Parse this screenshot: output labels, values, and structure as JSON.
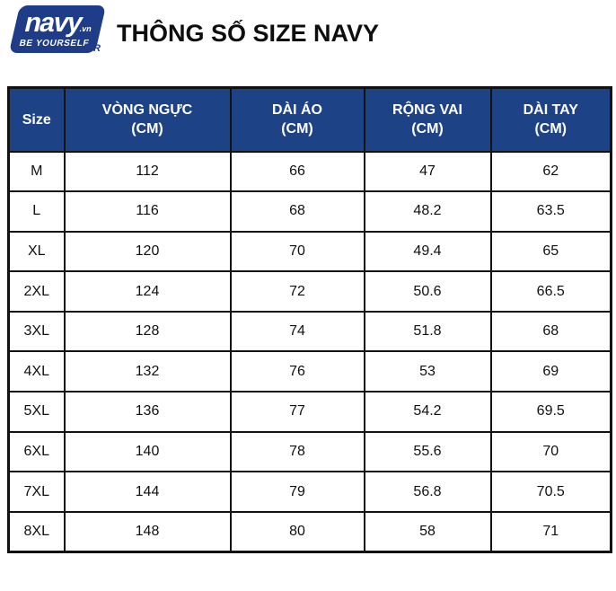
{
  "logo": {
    "brand": "navy",
    "tld": ".vn",
    "tagline": "BE YOURSELF",
    "registered": "R",
    "color": "#1e3c87"
  },
  "page_title": "THÔNG SỐ SIZE NAVY",
  "table": {
    "header_bg": "#1e4286",
    "header_text_color": "#ffffff",
    "border_color": "#121212",
    "headers": [
      {
        "label": "Size",
        "unit": ""
      },
      {
        "label": "VÒNG NGỰC",
        "unit": "(CM)"
      },
      {
        "label": "DÀI ÁO",
        "unit": "(CM)"
      },
      {
        "label": "RỘNG VAI",
        "unit": "(CM)"
      },
      {
        "label": "DÀI TAY",
        "unit": "(CM)"
      }
    ],
    "rows": [
      [
        "M",
        "112",
        "66",
        "47",
        "62"
      ],
      [
        "L",
        "116",
        "68",
        "48.2",
        "63.5"
      ],
      [
        "XL",
        "120",
        "70",
        "49.4",
        "65"
      ],
      [
        "2XL",
        "124",
        "72",
        "50.6",
        "66.5"
      ],
      [
        "3XL",
        "128",
        "74",
        "51.8",
        "68"
      ],
      [
        "4XL",
        "132",
        "76",
        "53",
        "69"
      ],
      [
        "5XL",
        "136",
        "77",
        "54.2",
        "69.5"
      ],
      [
        "6XL",
        "140",
        "78",
        "55.6",
        "70"
      ],
      [
        "7XL",
        "144",
        "79",
        "56.8",
        "70.5"
      ],
      [
        "8XL",
        "148",
        "80",
        "58",
        "71"
      ]
    ]
  },
  "chart_data": {
    "type": "table",
    "title": "THÔNG SỐ SIZE NAVY",
    "columns": [
      "Size",
      "VÒNG NGỰC (CM)",
      "DÀI ÁO (CM)",
      "RỘNG VAI (CM)",
      "DÀI TAY (CM)"
    ],
    "rows": [
      [
        "M",
        112,
        66,
        47,
        62
      ],
      [
        "L",
        116,
        68,
        48.2,
        63.5
      ],
      [
        "XL",
        120,
        70,
        49.4,
        65
      ],
      [
        "2XL",
        124,
        72,
        50.6,
        66.5
      ],
      [
        "3XL",
        128,
        74,
        51.8,
        68
      ],
      [
        "4XL",
        132,
        76,
        53,
        69
      ],
      [
        "5XL",
        136,
        77,
        54.2,
        69.5
      ],
      [
        "6XL",
        140,
        78,
        55.6,
        70
      ],
      [
        "7XL",
        144,
        79,
        56.8,
        70.5
      ],
      [
        "8XL",
        148,
        80,
        58,
        71
      ]
    ]
  }
}
